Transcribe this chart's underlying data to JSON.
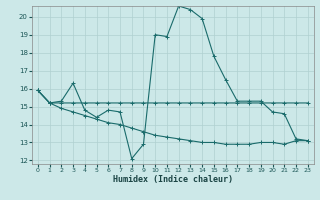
{
  "title": "",
  "xlabel": "Humidex (Indice chaleur)",
  "bg_color": "#cce8e8",
  "grid_color": "#b0d0d0",
  "line_color": "#1a6b6b",
  "xlim": [
    -0.5,
    23.5
  ],
  "ylim": [
    11.8,
    20.6
  ],
  "xticks": [
    0,
    1,
    2,
    3,
    4,
    5,
    6,
    7,
    8,
    9,
    10,
    11,
    12,
    13,
    14,
    15,
    16,
    17,
    18,
    19,
    20,
    21,
    22,
    23
  ],
  "yticks": [
    12,
    13,
    14,
    15,
    16,
    17,
    18,
    19,
    20
  ],
  "line1_x": [
    0,
    1,
    2,
    3,
    4,
    5,
    6,
    7,
    8,
    9,
    10,
    11,
    12,
    13,
    14,
    15,
    16,
    17,
    18,
    19,
    20,
    21,
    22,
    23
  ],
  "line1_y": [
    15.9,
    15.2,
    15.3,
    16.3,
    14.8,
    14.4,
    14.8,
    14.7,
    12.1,
    12.9,
    19.0,
    18.9,
    20.6,
    20.4,
    19.9,
    17.8,
    16.5,
    15.3,
    15.3,
    15.3,
    14.7,
    14.6,
    13.2,
    13.1
  ],
  "line2_x": [
    0,
    1,
    2,
    3,
    4,
    5,
    6,
    7,
    8,
    9,
    10,
    11,
    12,
    13,
    14,
    15,
    16,
    17,
    18,
    19,
    20,
    21,
    22,
    23
  ],
  "line2_y": [
    15.9,
    15.2,
    15.2,
    15.2,
    15.2,
    15.2,
    15.2,
    15.2,
    15.2,
    15.2,
    15.2,
    15.2,
    15.2,
    15.2,
    15.2,
    15.2,
    15.2,
    15.2,
    15.2,
    15.2,
    15.2,
    15.2,
    15.2,
    15.2
  ],
  "line3_x": [
    0,
    1,
    2,
    3,
    4,
    5,
    6,
    7,
    8,
    9,
    10,
    11,
    12,
    13,
    14,
    15,
    16,
    17,
    18,
    19,
    20,
    21,
    22,
    23
  ],
  "line3_y": [
    15.9,
    15.2,
    14.9,
    14.7,
    14.5,
    14.3,
    14.1,
    14.0,
    13.8,
    13.6,
    13.4,
    13.3,
    13.2,
    13.1,
    13.0,
    13.0,
    12.9,
    12.9,
    12.9,
    13.0,
    13.0,
    12.9,
    13.1,
    13.1
  ]
}
